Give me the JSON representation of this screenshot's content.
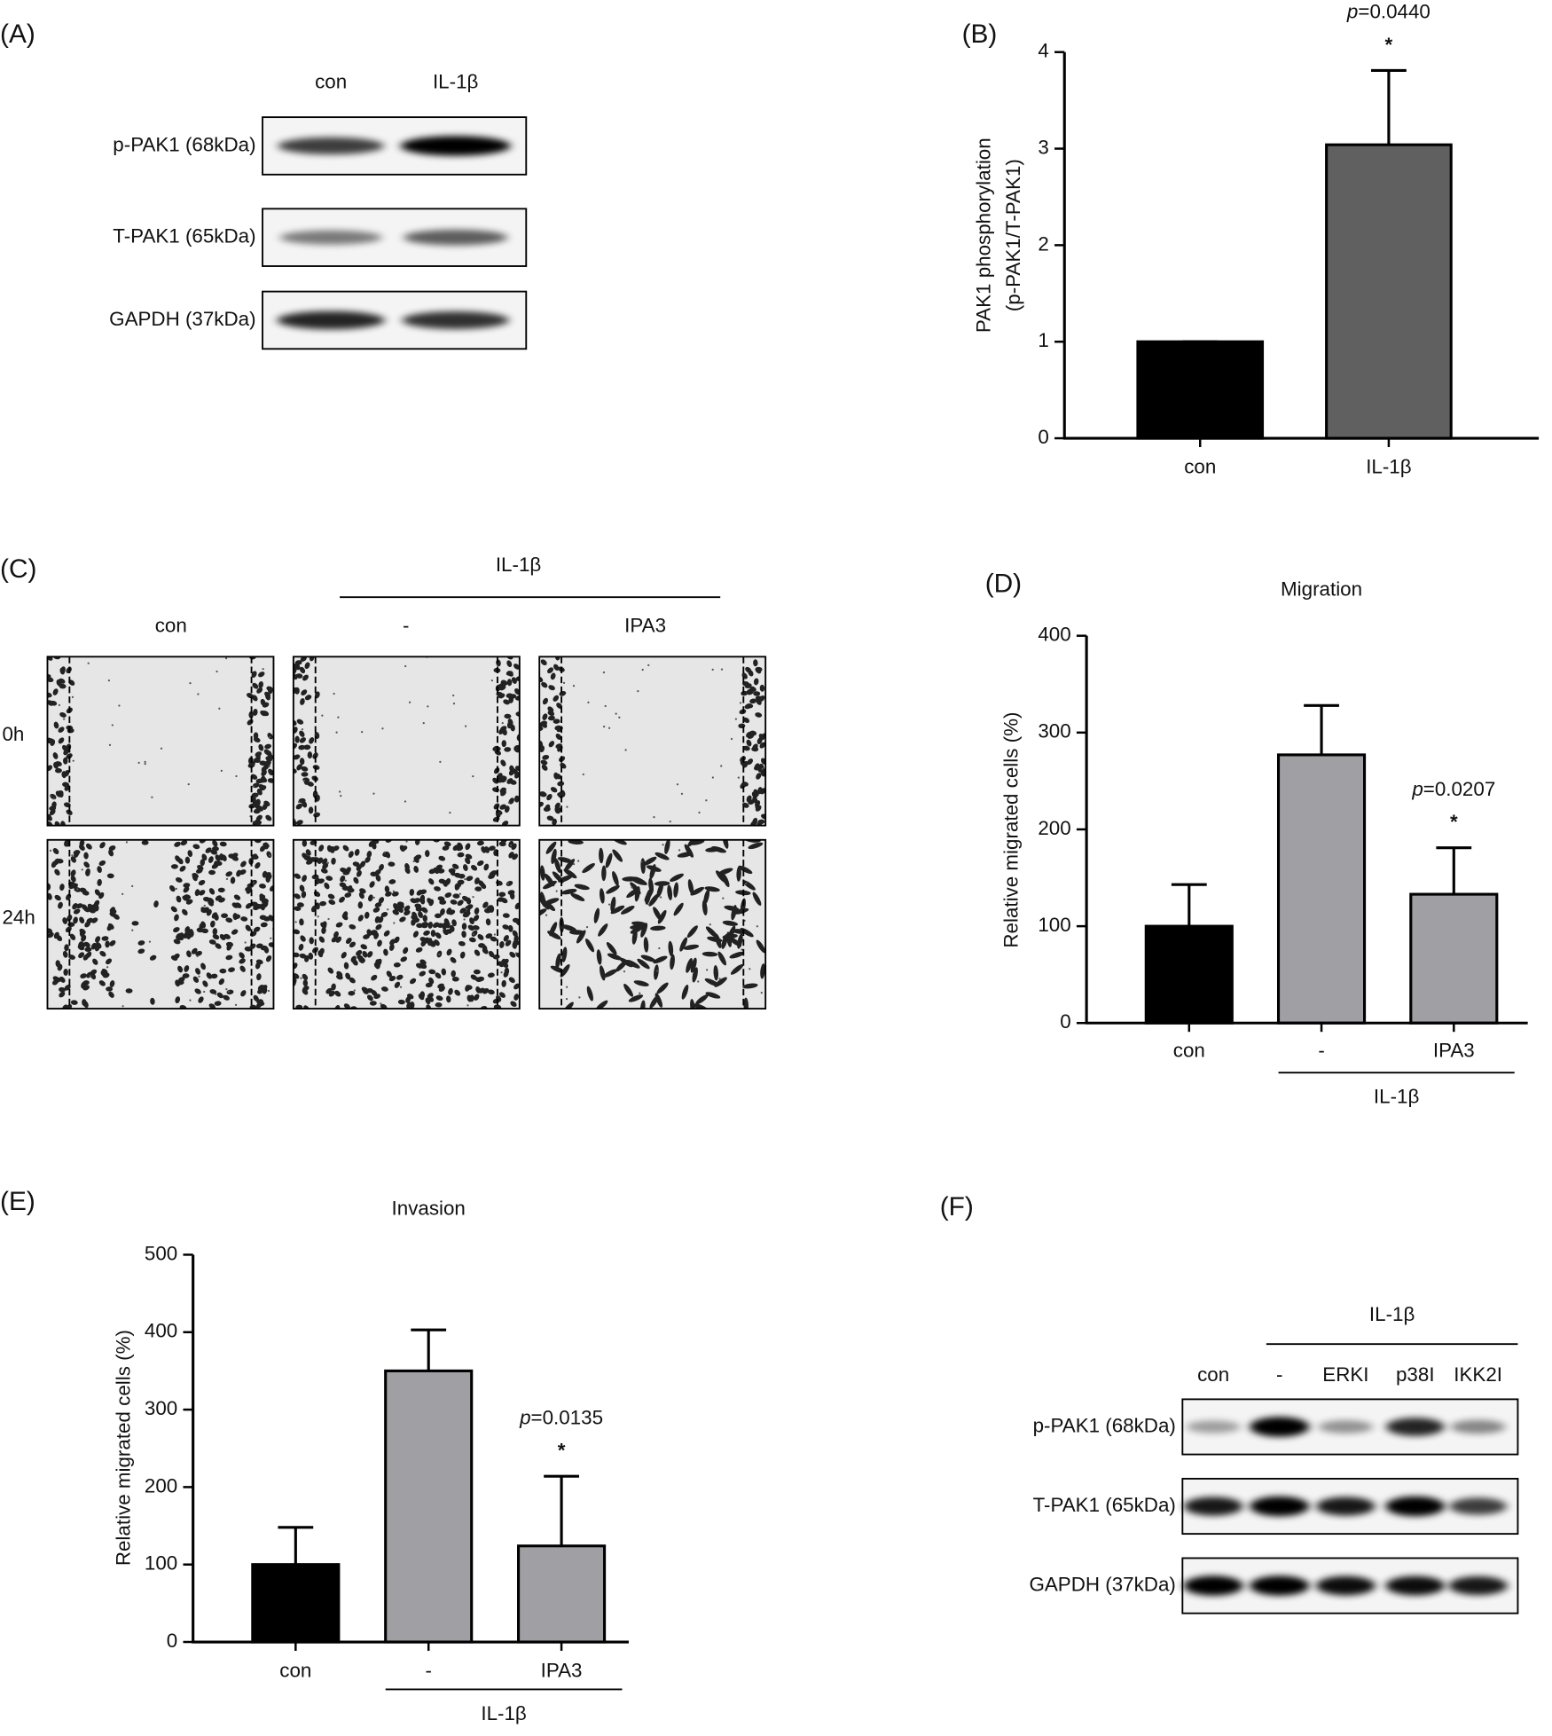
{
  "chart_data": [
    {
      "panel": "(B)",
      "type": "bar",
      "y_label": [
        "PAK1 phosphorylation",
        "(p-PAK1/T-PAK1)"
      ],
      "categories": [
        "con",
        "IL-1β"
      ],
      "values": [
        1.0,
        3.04
      ],
      "errors": [
        0,
        0.77
      ],
      "colors": [
        "#000000",
        "#606060"
      ],
      "ylim": [
        0,
        4
      ],
      "yticks": [
        0,
        1,
        2,
        3,
        4
      ],
      "annotations": [
        null,
        {
          "italic": "p",
          "text": "=0.0440",
          "mark": "*"
        }
      ]
    },
    {
      "panel": "(D)",
      "type": "bar",
      "title": "Migration",
      "y_label": [
        "Relative migrated cells (%)"
      ],
      "categories": [
        "con",
        "-",
        "IPA3"
      ],
      "values": [
        100,
        277,
        133
      ],
      "errors": [
        43,
        51,
        48
      ],
      "colors": [
        "#000000",
        "#a0a0a4",
        "#a0a0a4"
      ],
      "ylim": [
        0,
        400
      ],
      "yticks": [
        0,
        100,
        200,
        300,
        400
      ],
      "group": {
        "label": "IL-1β",
        "categories": [
          "-",
          "IPA3"
        ]
      },
      "annotations": [
        null,
        null,
        {
          "italic": "p",
          "text": "=0.0207",
          "mark": "*"
        }
      ]
    },
    {
      "panel": "(E)",
      "type": "bar",
      "title": "Invasion",
      "y_label": [
        "Relative migrated cells (%)"
      ],
      "categories": [
        "con",
        "-",
        "IPA3"
      ],
      "values": [
        100,
        350,
        124
      ],
      "errors": [
        48,
        53,
        90
      ],
      "colors": [
        "#000000",
        "#a0a0a4",
        "#a0a0a4"
      ],
      "ylim": [
        0,
        500
      ],
      "yticks": [
        0,
        100,
        200,
        300,
        400,
        500
      ],
      "group": {
        "label": "IL-1β",
        "categories": [
          "-",
          "IPA3"
        ]
      },
      "annotations": [
        null,
        null,
        {
          "italic": "p",
          "text": "=0.0135",
          "mark": "*"
        }
      ]
    }
  ],
  "blots": [
    {
      "panel": "(A)",
      "lanes": [
        "con",
        "IL-1β"
      ],
      "rows": [
        "p-PAK1 (68kDa)",
        "T-PAK1 (65kDa)",
        "GAPDH (37kDa)"
      ]
    },
    {
      "panel": "(F)",
      "group": "IL-1β",
      "lanes": [
        "con",
        "-",
        "ERKI",
        "p38I",
        "IKK2I"
      ],
      "rows": [
        "p-PAK1 (68kDa)",
        "T-PAK1 (65kDa)",
        "GAPDH (37kDa)"
      ]
    }
  ],
  "micrograph": {
    "panel": "(C)",
    "group": "IL-1β",
    "columns": [
      "con",
      "-",
      "IPA3"
    ],
    "rows": [
      "0h",
      "24h"
    ]
  }
}
